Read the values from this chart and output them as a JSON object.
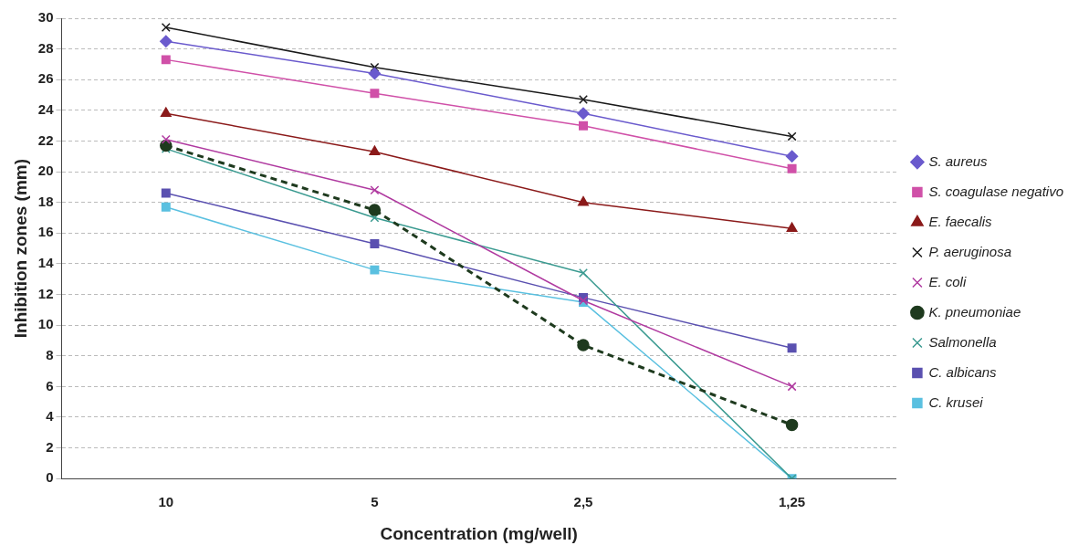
{
  "chart_data": {
    "type": "line",
    "xlabel": "Concentration (mg/well)",
    "ylabel": "Inhibition zones (mm)",
    "categories": [
      "10",
      "5",
      "2,5",
      "1,25"
    ],
    "ylim": [
      0,
      30
    ],
    "yticks": [
      0,
      2,
      4,
      6,
      8,
      10,
      12,
      14,
      16,
      18,
      20,
      22,
      24,
      26,
      28,
      30
    ],
    "grid": "y",
    "legend": "right",
    "series": [
      {
        "name": "S. aureus",
        "color": "#6a5acd",
        "marker": "diamond",
        "line_style": "solid",
        "values": [
          28.5,
          26.4,
          23.8,
          21.0
        ]
      },
      {
        "name": "S. coagulase negativo",
        "color": "#d050a8",
        "marker": "square",
        "line_style": "solid",
        "values": [
          27.3,
          25.1,
          23.0,
          20.2
        ]
      },
      {
        "name": "E. faecalis",
        "color": "#8b1a1a",
        "marker": "triangle",
        "line_style": "solid",
        "values": [
          23.8,
          21.3,
          18.0,
          16.3
        ]
      },
      {
        "name": "P. aeruginosa",
        "color": "#1a1a1a",
        "marker": "cross",
        "line_style": "solid",
        "values": [
          29.4,
          26.8,
          24.7,
          22.3
        ]
      },
      {
        "name": "E. coli",
        "color": "#b03aa0",
        "marker": "cross",
        "line_style": "solid",
        "values": [
          22.1,
          18.8,
          11.6,
          6.0
        ]
      },
      {
        "name": "K. pneumoniae",
        "color": "#1e3a1e",
        "marker": "circle",
        "line_style": "dashed",
        "values": [
          21.7,
          17.5,
          8.7,
          3.5
        ]
      },
      {
        "name": "Salmonella",
        "color": "#3a9a90",
        "marker": "cross",
        "line_style": "solid",
        "values": [
          21.5,
          17.0,
          13.4,
          0
        ]
      },
      {
        "name": "C. albicans",
        "color": "#5a50b0",
        "marker": "square",
        "line_style": "solid",
        "values": [
          18.6,
          15.3,
          11.8,
          8.5
        ]
      },
      {
        "name": "C. krusei",
        "color": "#5ac0e0",
        "marker": "square",
        "line_style": "solid",
        "values": [
          17.7,
          13.6,
          11.5,
          0
        ]
      }
    ]
  }
}
